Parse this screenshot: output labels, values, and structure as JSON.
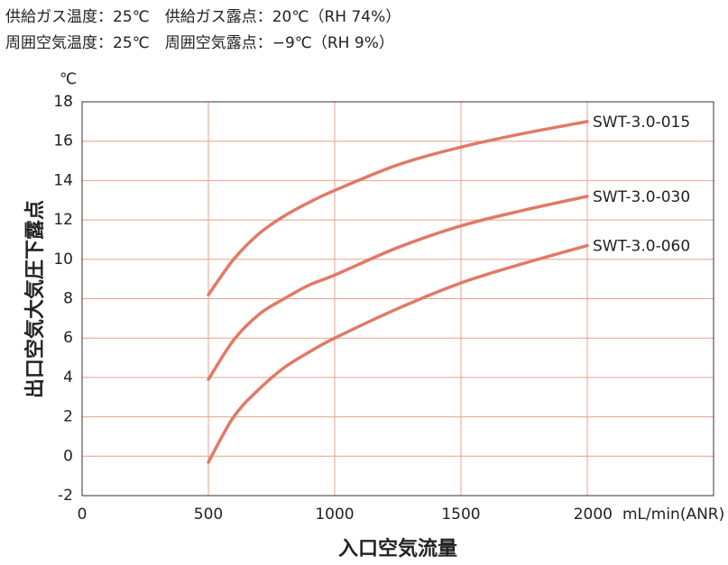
{
  "chart_data": {
    "type": "line",
    "header_lines": [
      "供給ガス温度：25℃　供給ガス露点：20℃（RH 74%）",
      "周囲空気温度：25℃　周囲空気露点：−9℃（RH 9%）"
    ],
    "y_unit": "℃",
    "y_label": "出口空気大気圧下露点",
    "x_label": "入口空気流量",
    "x_unit": "mL/min(ANR)",
    "x": [
      500,
      600,
      700,
      800,
      900,
      1000,
      1250,
      1500,
      1750,
      2000
    ],
    "series": [
      {
        "name": "SWT-3.0-015",
        "color": "#e07a66",
        "values": [
          8.2,
          10.0,
          11.3,
          12.2,
          12.9,
          13.5,
          14.8,
          15.7,
          16.4,
          17.0
        ]
      },
      {
        "name": "SWT-3.0-030",
        "color": "#e07a66",
        "values": [
          3.9,
          5.9,
          7.2,
          8.0,
          8.7,
          9.2,
          10.6,
          11.7,
          12.5,
          13.2
        ]
      },
      {
        "name": "SWT-3.0-060",
        "color": "#e07a66",
        "values": [
          -0.3,
          2.0,
          3.4,
          4.5,
          5.3,
          6.0,
          7.5,
          8.8,
          9.8,
          10.7
        ]
      }
    ],
    "xlim": [
      0,
      2500
    ],
    "xticks": [
      0,
      500,
      1000,
      1500,
      2000
    ],
    "ylim": [
      -2,
      18
    ],
    "yticks": [
      -2,
      0,
      2,
      4,
      6,
      8,
      10,
      12,
      14,
      16,
      18
    ],
    "grid": true,
    "grid_color": "#e8a090"
  }
}
